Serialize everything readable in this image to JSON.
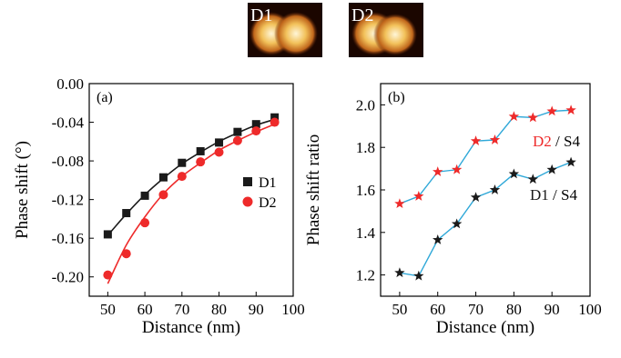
{
  "insets": [
    {
      "label": "D1"
    },
    {
      "label": "D2"
    }
  ],
  "colors": {
    "black": "#1a1a1a",
    "red": "#ee2a2a",
    "blue_line": "#2fa8d8",
    "axis": "#000000"
  },
  "chart_data": [
    {
      "type": "scatter",
      "panel_label": "(a)",
      "xlabel": "Distance (nm)",
      "ylabel": "Phase shift (°)",
      "xlim": [
        45,
        100
      ],
      "ylim": [
        -0.22,
        0.0
      ],
      "xticks": [
        50,
        60,
        70,
        80,
        90,
        100
      ],
      "xtick_labels": [
        "50",
        "60",
        "70",
        "80",
        "90",
        "100"
      ],
      "yticks": [
        0.0,
        -0.04,
        -0.08,
        -0.12,
        -0.16,
        -0.2
      ],
      "ytick_labels": [
        "0.00",
        "-0.04",
        "-0.08",
        "-0.12",
        "-0.16",
        "-0.20"
      ],
      "legend_position": "right",
      "series": [
        {
          "name": "D1",
          "marker": "square",
          "color": "#1a1a1a",
          "x": [
            50,
            55,
            60,
            65,
            70,
            75,
            80,
            85,
            90,
            95
          ],
          "y": [
            -0.156,
            -0.134,
            -0.116,
            -0.097,
            -0.082,
            -0.07,
            -0.061,
            -0.05,
            -0.042,
            -0.035
          ],
          "fit": {
            "x": [
              50,
              55,
              60,
              65,
              70,
              75,
              80,
              85,
              90,
              95
            ],
            "y": [
              -0.157,
              -0.135,
              -0.115,
              -0.098,
              -0.083,
              -0.071,
              -0.06,
              -0.051,
              -0.043,
              -0.037
            ]
          }
        },
        {
          "name": "D2",
          "marker": "circle",
          "color": "#ee2a2a",
          "x": [
            50,
            55,
            60,
            65,
            70,
            75,
            80,
            85,
            90,
            95
          ],
          "y": [
            -0.198,
            -0.176,
            -0.144,
            -0.115,
            -0.096,
            -0.081,
            -0.071,
            -0.059,
            -0.049,
            -0.04
          ],
          "fit": {
            "x": [
              50,
              55,
              60,
              65,
              70,
              75,
              80,
              85,
              90,
              95
            ],
            "y": [
              -0.207,
              -0.167,
              -0.138,
              -0.114,
              -0.096,
              -0.082,
              -0.069,
              -0.059,
              -0.05,
              -0.042
            ]
          }
        }
      ]
    },
    {
      "type": "line",
      "panel_label": "(b)",
      "xlabel": "Distance (nm)",
      "ylabel": "Phase shift  ratio",
      "xlim": [
        45,
        100
      ],
      "ylim": [
        1.1,
        2.1
      ],
      "xticks": [
        50,
        60,
        70,
        80,
        90,
        100
      ],
      "xtick_labels": [
        "50",
        "60",
        "70",
        "80",
        "90",
        "100"
      ],
      "yticks": [
        1.2,
        1.4,
        1.6,
        1.8,
        2.0
      ],
      "ytick_labels": [
        "1.2",
        "1.4",
        "1.6",
        "1.8",
        "2.0"
      ],
      "series": [
        {
          "name": "D2",
          "suffix": " / S4",
          "marker": "star",
          "marker_color": "#ee2a2a",
          "line_color": "#2fa8d8",
          "x": [
            50,
            55,
            60,
            65,
            70,
            75,
            80,
            85,
            90,
            95
          ],
          "y": [
            1.535,
            1.57,
            1.685,
            1.695,
            1.83,
            1.835,
            1.945,
            1.94,
            1.97,
            1.975
          ]
        },
        {
          "name": "D1",
          "suffix": " / S4",
          "marker": "star",
          "marker_color": "#1a1a1a",
          "line_color": "#2fa8d8",
          "x": [
            50,
            55,
            60,
            65,
            70,
            75,
            80,
            85,
            90,
            95
          ],
          "y": [
            1.21,
            1.195,
            1.365,
            1.44,
            1.565,
            1.6,
            1.675,
            1.65,
            1.695,
            1.73
          ]
        }
      ]
    }
  ]
}
